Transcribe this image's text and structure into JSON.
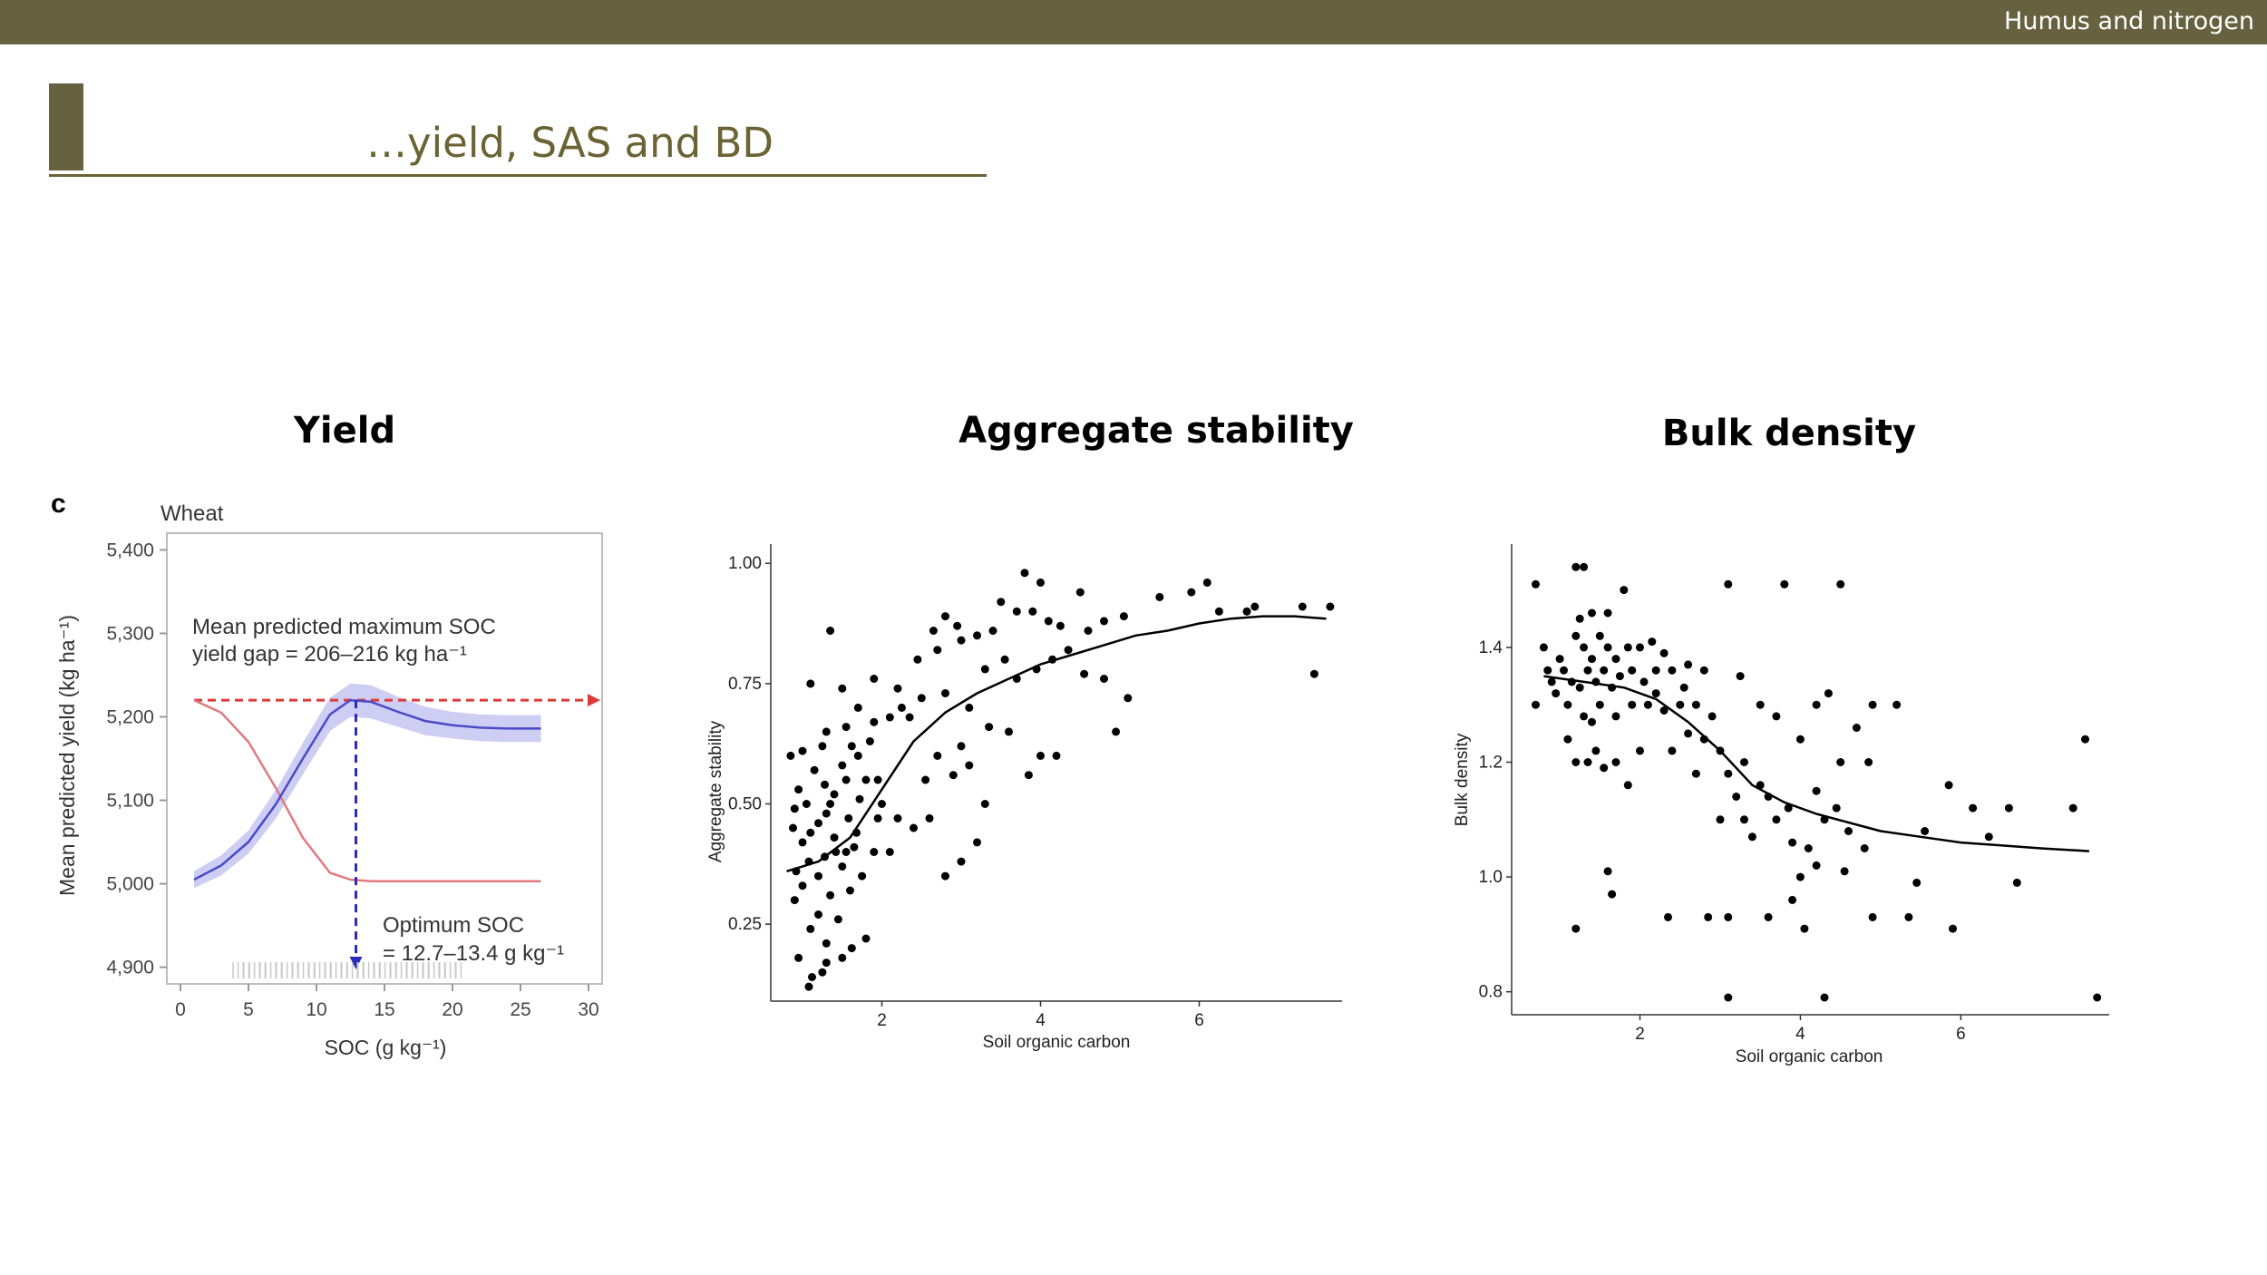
{
  "header": {
    "section_label": "Humus and nitrogen"
  },
  "slide": {
    "title": "…yield, SAS and BD"
  },
  "panels": {
    "yield_heading": "Yield",
    "sas_heading": "Aggregate stability",
    "bd_heading": "Bulk density"
  },
  "colors": {
    "bar": "#66613e",
    "title": "#6b6334",
    "blue": "#4a4ac8",
    "band": "#c6c6f2",
    "red": "#e07a80",
    "red_dash": "#dd3a3a"
  },
  "chart_data": [
    {
      "type": "line",
      "panel_label": "c",
      "title": "Wheat",
      "xlabel": "SOC (g kg⁻¹)",
      "ylabel": "Mean predicted yield (kg ha⁻¹)",
      "xlim": [
        -1,
        31
      ],
      "ylim": [
        4880,
        5420
      ],
      "xticks": [
        0,
        5,
        10,
        15,
        20,
        25,
        30
      ],
      "yticks": [
        4900,
        5000,
        5100,
        5200,
        5300,
        5400
      ],
      "ytick_labels": [
        "4,900",
        "5,000",
        "5,100",
        "5,200",
        "5,300",
        "5,400"
      ],
      "series": [
        {
          "name": "Mean predicted yield",
          "x": [
            1,
            3,
            5,
            7,
            9,
            11,
            12.5,
            14,
            16,
            18,
            20,
            22,
            24,
            26.5
          ],
          "values": [
            5005,
            5022,
            5050,
            5095,
            5150,
            5203,
            5220,
            5218,
            5206,
            5195,
            5190,
            5187,
            5186,
            5186
          ]
        },
        {
          "name": "Decreasing red curve",
          "x": [
            1,
            3,
            5,
            7,
            9,
            11,
            12.5,
            14,
            16,
            20,
            26.5
          ],
          "values": [
            5220,
            5205,
            5170,
            5115,
            5055,
            5013,
            5005,
            5003,
            5003,
            5003,
            5003
          ]
        }
      ],
      "band_halfwidth": [
        10,
        12,
        14,
        17,
        19,
        20,
        20,
        20,
        18,
        17,
        16,
        16,
        16,
        16
      ],
      "max_line_y": 5220,
      "optimum_x": 12.9,
      "annotations": {
        "gap_line1": "Mean predicted maximum SOC",
        "gap_line2": "yield gap = 206–216 kg ha⁻¹",
        "opt_line1": "Optimum SOC",
        "opt_line2": "= 12.7–13.4 g kg⁻¹"
      }
    },
    {
      "type": "scatter",
      "title": "Aggregate stability",
      "xlabel": "Soil organic carbon",
      "ylabel": "Aggregate stability",
      "xlim": [
        0.6,
        7.8
      ],
      "ylim": [
        0.09,
        1.04
      ],
      "xticks": [
        2,
        4,
        6
      ],
      "yticks": [
        0.25,
        0.5,
        0.75,
        1.0
      ],
      "ytick_labels": [
        "0.25",
        "0.50",
        "0.75",
        "1.00"
      ],
      "points": [
        [
          1.08,
          0.12
        ],
        [
          1.12,
          0.14
        ],
        [
          1.25,
          0.15
        ],
        [
          1.3,
          0.17
        ],
        [
          0.95,
          0.18
        ],
        [
          1.5,
          0.18
        ],
        [
          1.62,
          0.2
        ],
        [
          1.3,
          0.21
        ],
        [
          1.8,
          0.22
        ],
        [
          1.1,
          0.24
        ],
        [
          1.45,
          0.26
        ],
        [
          1.2,
          0.27
        ],
        [
          0.9,
          0.3
        ],
        [
          1.35,
          0.31
        ],
        [
          1.6,
          0.32
        ],
        [
          1.0,
          0.33
        ],
        [
          1.2,
          0.35
        ],
        [
          0.92,
          0.36
        ],
        [
          1.5,
          0.37
        ],
        [
          1.75,
          0.35
        ],
        [
          1.08,
          0.38
        ],
        [
          1.28,
          0.39
        ],
        [
          1.55,
          0.4
        ],
        [
          1.9,
          0.4
        ],
        [
          2.1,
          0.4
        ],
        [
          1.0,
          0.42
        ],
        [
          1.4,
          0.43
        ],
        [
          1.68,
          0.44
        ],
        [
          0.88,
          0.45
        ],
        [
          1.2,
          0.46
        ],
        [
          1.58,
          0.47
        ],
        [
          1.95,
          0.47
        ],
        [
          2.2,
          0.47
        ],
        [
          1.05,
          0.5
        ],
        [
          1.35,
          0.5
        ],
        [
          1.72,
          0.51
        ],
        [
          0.95,
          0.53
        ],
        [
          1.28,
          0.54
        ],
        [
          1.8,
          0.55
        ],
        [
          1.15,
          0.57
        ],
        [
          1.5,
          0.58
        ],
        [
          0.85,
          0.6
        ],
        [
          1.0,
          0.61
        ],
        [
          1.62,
          0.62
        ],
        [
          1.85,
          0.63
        ],
        [
          1.3,
          0.65
        ],
        [
          1.55,
          0.66
        ],
        [
          1.9,
          0.67
        ],
        [
          2.1,
          0.68
        ],
        [
          1.7,
          0.7
        ],
        [
          2.25,
          0.7
        ],
        [
          1.1,
          0.75
        ],
        [
          1.5,
          0.74
        ],
        [
          1.9,
          0.76
        ],
        [
          1.35,
          0.86
        ],
        [
          2.55,
          0.55
        ],
        [
          2.7,
          0.6
        ],
        [
          2.9,
          0.56
        ],
        [
          3.1,
          0.58
        ],
        [
          3.3,
          0.5
        ],
        [
          2.6,
          0.47
        ],
        [
          2.4,
          0.45
        ],
        [
          3.0,
          0.62
        ],
        [
          2.35,
          0.68
        ],
        [
          2.5,
          0.72
        ],
        [
          2.8,
          0.73
        ],
        [
          2.2,
          0.74
        ],
        [
          2.45,
          0.8
        ],
        [
          2.7,
          0.82
        ],
        [
          3.0,
          0.84
        ],
        [
          2.65,
          0.86
        ],
        [
          2.95,
          0.87
        ],
        [
          3.2,
          0.85
        ],
        [
          2.8,
          0.89
        ],
        [
          3.4,
          0.86
        ],
        [
          3.3,
          0.78
        ],
        [
          3.55,
          0.8
        ],
        [
          3.7,
          0.76
        ],
        [
          3.95,
          0.78
        ],
        [
          4.15,
          0.8
        ],
        [
          4.35,
          0.82
        ],
        [
          3.5,
          0.92
        ],
        [
          3.7,
          0.9
        ],
        [
          3.9,
          0.9
        ],
        [
          4.1,
          0.88
        ],
        [
          4.25,
          0.87
        ],
        [
          4.6,
          0.86
        ],
        [
          4.8,
          0.88
        ],
        [
          5.05,
          0.89
        ],
        [
          3.8,
          0.98
        ],
        [
          4.0,
          0.96
        ],
        [
          4.5,
          0.94
        ],
        [
          5.5,
          0.93
        ],
        [
          5.9,
          0.94
        ],
        [
          6.1,
          0.96
        ],
        [
          6.25,
          0.9
        ],
        [
          6.6,
          0.9
        ],
        [
          6.7,
          0.91
        ],
        [
          7.3,
          0.91
        ],
        [
          7.65,
          0.91
        ],
        [
          7.45,
          0.77
        ],
        [
          5.1,
          0.72
        ],
        [
          4.55,
          0.77
        ],
        [
          4.8,
          0.76
        ],
        [
          3.1,
          0.7
        ],
        [
          3.35,
          0.66
        ],
        [
          3.6,
          0.65
        ],
        [
          4.0,
          0.6
        ],
        [
          4.2,
          0.6
        ],
        [
          4.95,
          0.65
        ],
        [
          3.85,
          0.56
        ],
        [
          3.2,
          0.42
        ],
        [
          2.8,
          0.35
        ],
        [
          3.0,
          0.38
        ],
        [
          1.95,
          0.55
        ],
        [
          1.4,
          0.52
        ],
        [
          0.9,
          0.49
        ],
        [
          1.1,
          0.44
        ],
        [
          1.3,
          0.48
        ],
        [
          1.55,
          0.55
        ],
        [
          1.7,
          0.6
        ],
        [
          1.25,
          0.62
        ],
        [
          1.42,
          0.4
        ],
        [
          1.65,
          0.41
        ],
        [
          2.0,
          0.5
        ]
      ],
      "trend": {
        "x": [
          0.8,
          1.2,
          1.6,
          2.0,
          2.4,
          2.8,
          3.2,
          3.6,
          4.0,
          4.4,
          4.8,
          5.2,
          5.6,
          6.0,
          6.4,
          6.8,
          7.2,
          7.6
        ],
        "values": [
          0.36,
          0.38,
          0.43,
          0.53,
          0.63,
          0.69,
          0.73,
          0.76,
          0.79,
          0.81,
          0.83,
          0.85,
          0.86,
          0.875,
          0.885,
          0.89,
          0.89,
          0.885
        ]
      }
    },
    {
      "type": "scatter",
      "title": "Bulk density",
      "xlabel": "Soil organic carbon",
      "ylabel": "Bulk density",
      "xlim": [
        0.4,
        7.85
      ],
      "ylim": [
        0.76,
        1.58
      ],
      "xticks": [
        2,
        4,
        6
      ],
      "yticks": [
        0.8,
        1.0,
        1.2,
        1.4
      ],
      "ytick_labels": [
        "0.8",
        "1.0",
        "1.2",
        "1.4"
      ],
      "points": [
        [
          0.7,
          1.51
        ],
        [
          1.2,
          1.54
        ],
        [
          1.3,
          1.54
        ],
        [
          1.6,
          1.46
        ],
        [
          1.4,
          1.46
        ],
        [
          0.8,
          1.4
        ],
        [
          1.0,
          1.38
        ],
        [
          1.2,
          1.42
        ],
        [
          1.3,
          1.4
        ],
        [
          1.4,
          1.38
        ],
        [
          1.5,
          1.42
        ],
        [
          1.6,
          1.4
        ],
        [
          1.7,
          1.38
        ],
        [
          1.85,
          1.4
        ],
        [
          2.0,
          1.4
        ],
        [
          2.15,
          1.41
        ],
        [
          2.3,
          1.39
        ],
        [
          0.9,
          1.34
        ],
        [
          1.05,
          1.36
        ],
        [
          1.15,
          1.34
        ],
        [
          1.25,
          1.33
        ],
        [
          1.35,
          1.36
        ],
        [
          1.45,
          1.34
        ],
        [
          1.55,
          1.36
        ],
        [
          1.65,
          1.33
        ],
        [
          1.75,
          1.35
        ],
        [
          1.9,
          1.36
        ],
        [
          2.05,
          1.34
        ],
        [
          2.2,
          1.36
        ],
        [
          2.4,
          1.36
        ],
        [
          2.6,
          1.37
        ],
        [
          2.8,
          1.36
        ],
        [
          0.7,
          1.3
        ],
        [
          0.95,
          1.32
        ],
        [
          1.1,
          1.3
        ],
        [
          1.3,
          1.28
        ],
        [
          1.5,
          1.3
        ],
        [
          1.7,
          1.28
        ],
        [
          1.9,
          1.3
        ],
        [
          2.1,
          1.3
        ],
        [
          2.3,
          1.29
        ],
        [
          2.5,
          1.3
        ],
        [
          2.7,
          1.3
        ],
        [
          2.9,
          1.28
        ],
        [
          1.2,
          1.2
        ],
        [
          1.35,
          1.2
        ],
        [
          1.45,
          1.22
        ],
        [
          1.55,
          1.19
        ],
        [
          1.7,
          1.2
        ],
        [
          1.85,
          1.16
        ],
        [
          2.0,
          1.22
        ],
        [
          2.4,
          1.22
        ],
        [
          2.6,
          1.25
        ],
        [
          2.8,
          1.24
        ],
        [
          3.0,
          1.22
        ],
        [
          3.1,
          1.18
        ],
        [
          3.3,
          1.2
        ],
        [
          3.5,
          1.16
        ],
        [
          3.6,
          1.14
        ],
        [
          3.2,
          1.14
        ],
        [
          3.0,
          1.1
        ],
        [
          3.4,
          1.07
        ],
        [
          3.7,
          1.1
        ],
        [
          3.9,
          1.06
        ],
        [
          4.1,
          1.05
        ],
        [
          4.3,
          1.1
        ],
        [
          4.6,
          1.08
        ],
        [
          4.8,
          1.05
        ],
        [
          3.25,
          1.35
        ],
        [
          3.5,
          1.3
        ],
        [
          3.7,
          1.28
        ],
        [
          4.0,
          1.24
        ],
        [
          4.2,
          1.3
        ],
        [
          4.35,
          1.32
        ],
        [
          4.7,
          1.26
        ],
        [
          4.9,
          1.3
        ],
        [
          5.2,
          1.3
        ],
        [
          4.5,
          1.2
        ],
        [
          4.85,
          1.2
        ],
        [
          1.2,
          0.91
        ],
        [
          1.6,
          1.01
        ],
        [
          1.65,
          0.97
        ],
        [
          2.35,
          0.93
        ],
        [
          2.85,
          0.93
        ],
        [
          3.1,
          0.93
        ],
        [
          3.6,
          0.93
        ],
        [
          3.9,
          0.96
        ],
        [
          4.05,
          0.91
        ],
        [
          4.2,
          1.02
        ],
        [
          4.55,
          1.01
        ],
        [
          4.9,
          0.93
        ],
        [
          5.35,
          0.93
        ],
        [
          5.45,
          0.99
        ],
        [
          5.9,
          0.91
        ],
        [
          3.1,
          0.79
        ],
        [
          4.3,
          0.79
        ],
        [
          3.1,
          1.51
        ],
        [
          3.8,
          1.51
        ],
        [
          4.5,
          1.51
        ],
        [
          5.55,
          1.08
        ],
        [
          5.85,
          1.16
        ],
        [
          6.15,
          1.12
        ],
        [
          6.35,
          1.07
        ],
        [
          6.6,
          1.12
        ],
        [
          6.7,
          0.99
        ],
        [
          7.4,
          1.12
        ],
        [
          7.55,
          1.24
        ],
        [
          7.7,
          0.79
        ],
        [
          4.2,
          1.15
        ],
        [
          3.85,
          1.12
        ],
        [
          4.45,
          1.12
        ],
        [
          4.0,
          1.0
        ],
        [
          3.3,
          1.1
        ],
        [
          2.7,
          1.18
        ],
        [
          1.8,
          1.5
        ],
        [
          1.25,
          1.45
        ],
        [
          0.85,
          1.36
        ],
        [
          1.1,
          1.24
        ],
        [
          1.4,
          1.27
        ],
        [
          2.2,
          1.32
        ],
        [
          2.55,
          1.33
        ]
      ],
      "trend": {
        "x": [
          0.8,
          1.3,
          1.8,
          2.2,
          2.6,
          3.0,
          3.4,
          3.8,
          4.2,
          4.6,
          5.0,
          5.5,
          6.0,
          6.5,
          7.0,
          7.6
        ],
        "values": [
          1.35,
          1.34,
          1.33,
          1.31,
          1.27,
          1.22,
          1.16,
          1.13,
          1.11,
          1.095,
          1.08,
          1.07,
          1.06,
          1.055,
          1.05,
          1.045
        ]
      }
    }
  ]
}
